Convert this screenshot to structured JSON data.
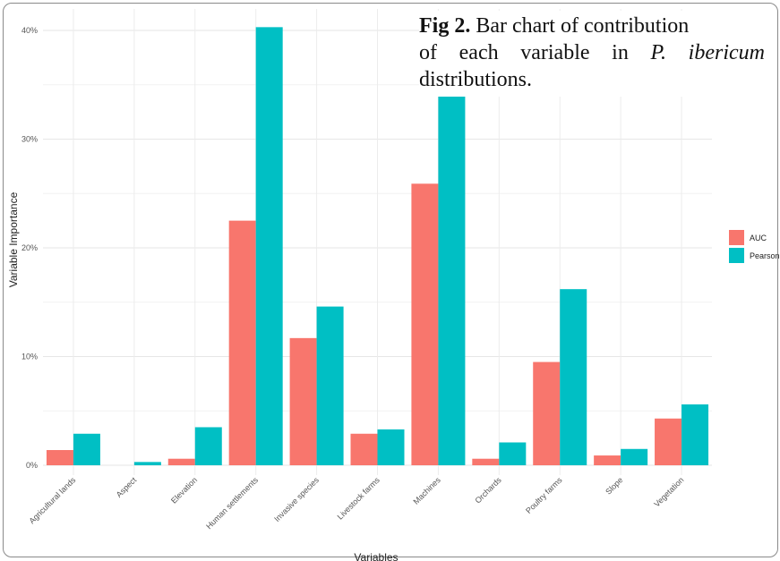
{
  "caption": {
    "fig_label": "Fig 2.",
    "line1_rest": "Bar chart of contribution",
    "line2_a": "of each variable in",
    "line2_species": "P. ibericum",
    "line3": "distributions."
  },
  "colors": {
    "AUC": "#F8766D",
    "Pearson": "#00BFC4"
  },
  "chart_data": {
    "type": "bar",
    "xlabel": "Variables",
    "ylabel": "Variable Importance",
    "ylim": [
      0,
      41
    ],
    "yticks": [
      0,
      10,
      20,
      30,
      40
    ],
    "ytick_labels": [
      "0%",
      "10%",
      "20%",
      "30%",
      "40%"
    ],
    "grid": true,
    "legend_position": "right",
    "categories": [
      "Agricultural lands",
      "Aspect",
      "Elevation",
      "Human settlements",
      "Invasive species",
      "Livestock farms",
      "Machines",
      "Orchards",
      "Poultry farms",
      "Slope",
      "Vegetation"
    ],
    "series": [
      {
        "name": "AUC",
        "values": [
          1.4,
          0,
          0.6,
          22.5,
          11.7,
          2.9,
          25.9,
          0.6,
          9.5,
          0.9,
          4.3
        ]
      },
      {
        "name": "Pearson",
        "values": [
          2.9,
          0.3,
          3.5,
          40.3,
          14.6,
          3.3,
          34.1,
          2.1,
          16.2,
          1.5,
          5.6
        ]
      }
    ]
  }
}
